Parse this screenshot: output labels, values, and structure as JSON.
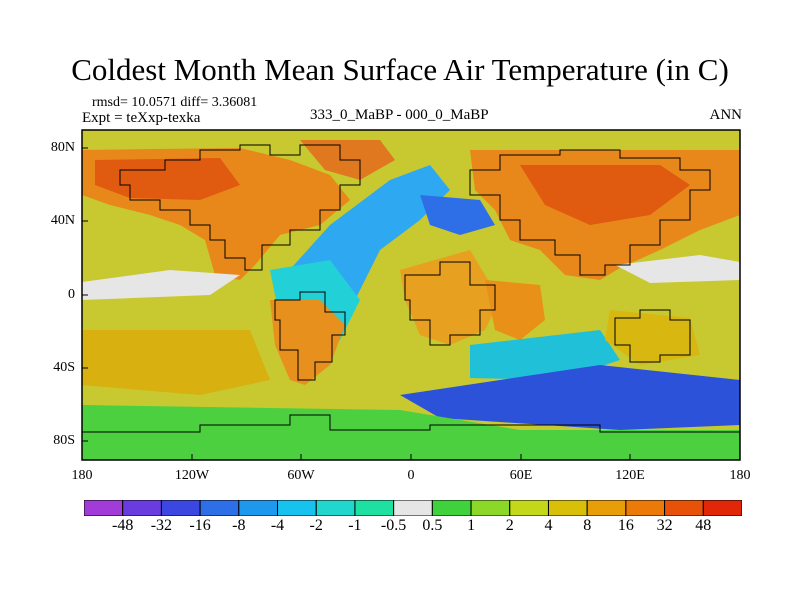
{
  "title": "Coldest Month Mean Surface Air Temperature (in C)",
  "stats": "rmsd= 10.0571 diff= 3.36081",
  "expt": "Expt = teXxp-texka",
  "center_label": "333_0_MaBP - 000_0_MaBP",
  "right_label": "ANN",
  "y_labels": [
    "80N",
    "40N",
    "0",
    "40S",
    "80S"
  ],
  "x_labels": [
    "180",
    "120W",
    "60W",
    "0",
    "60E",
    "120E",
    "180"
  ],
  "colorbar": {
    "labels": [
      "-48",
      "-32",
      "-16",
      "-8",
      "-4",
      "-2",
      "-1",
      "-0.5",
      "0.5",
      "1",
      "2",
      "4",
      "8",
      "16",
      "32",
      "48"
    ],
    "colors": [
      "#a23cd8",
      "#6a3ce0",
      "#3c46e0",
      "#2e6ee6",
      "#1e98ec",
      "#18c2ee",
      "#22d6ce",
      "#1ee0a0",
      "#e6e6e6",
      "#40d23c",
      "#8cd828",
      "#c2d818",
      "#d8c008",
      "#e89e08",
      "#ec7a08",
      "#e85208",
      "#e02808"
    ]
  },
  "chart_data": {
    "type": "heatmap",
    "title": "Coldest Month Mean Surface Air Temperature (in C)",
    "subtitle": "333_0_MaBP - 000_0_MaBP",
    "x_ticks": [
      "180",
      "120W",
      "60W",
      "0",
      "60E",
      "120E",
      "180"
    ],
    "y_ticks": [
      "80N",
      "40N",
      "0",
      "40S",
      "80S"
    ],
    "xlim": [
      -180,
      180
    ],
    "ylim": [
      -90,
      90
    ],
    "levels": [
      -48,
      -32,
      -16,
      -8,
      -4,
      -2,
      -1,
      -0.5,
      0.5,
      1,
      2,
      4,
      8,
      16,
      32,
      48
    ],
    "rmsd": 10.0571,
    "diff": 3.36081
  }
}
